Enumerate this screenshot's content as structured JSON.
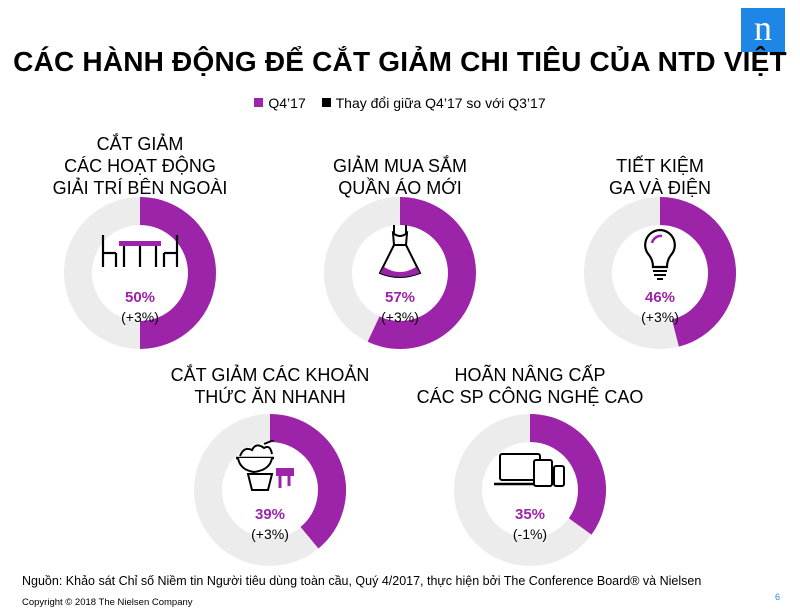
{
  "header": {
    "title": "CÁC HÀNH ĐỘNG ĐỂ CẮT GIẢM CHI TIÊU CỦA NTD VIỆT",
    "logo_letter": "n"
  },
  "legend": [
    {
      "label": "Q4’17",
      "color": "#9b24a8"
    },
    {
      "label": "Thay đổi giữa Q4’17 so với Q3’17",
      "color": "#000000"
    }
  ],
  "chart_data": {
    "type": "pie",
    "charts": [
      {
        "label_lines": [
          "CẮT GIẢM",
          "CÁC HOẠT ĐỘNG",
          "GIẢI TRÍ BÊN NGOÀI"
        ],
        "value": 50,
        "value_label": "50%",
        "change_label": "(+3%)",
        "icon": "dining-table-icon"
      },
      {
        "label_lines": [
          "GIẢM MUA SẮM",
          "QUẦN ÁO MỚI"
        ],
        "value": 57,
        "value_label": "57%",
        "change_label": "(+3%)",
        "icon": "dress-icon"
      },
      {
        "label_lines": [
          "TIẾT KIỆM",
          "GA VÀ ĐIỆN"
        ],
        "value": 46,
        "value_label": "46%",
        "change_label": "(+3%)",
        "icon": "light-bulb-icon"
      },
      {
        "label_lines": [
          "CẮT GIẢM CÁC KHOẢN",
          "THỨC ĂN NHANH"
        ],
        "value": 39,
        "value_label": "39%",
        "change_label": "(+3%)",
        "icon": "fast-food-icon"
      },
      {
        "label_lines": [
          "HOÃN NÂNG CẤP",
          "CÁC SP CÔNG NGHỆ CAO"
        ],
        "value": 35,
        "value_label": "35%",
        "change_label": "(-1%)",
        "icon": "devices-icon"
      }
    ],
    "colors": {
      "value": "#9b24a8",
      "remainder": "#ececec"
    }
  },
  "footer": {
    "source": "Nguồn: Khảo sát Chỉ số Niềm tin Người tiêu dùng toàn cầu, Quý 4/2017, thực hiện bởi The Conference Board® và Nielsen",
    "copyright": "Copyright © 2018 The Nielsen Company",
    "page": "6"
  }
}
